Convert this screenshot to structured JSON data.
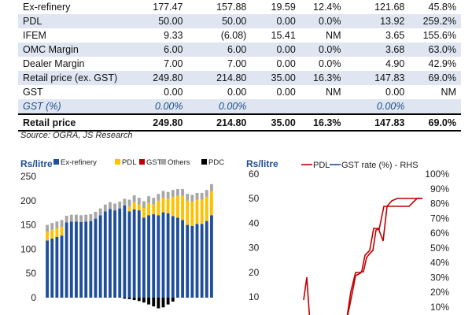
{
  "table": {
    "rows": [
      {
        "cells": [
          "Ex-refinery",
          "177.47",
          "157.88",
          "19.59",
          "12.4%",
          "121.68",
          "45.8%"
        ],
        "style": "plain"
      },
      {
        "cells": [
          "PDL",
          "50.00",
          "50.00",
          "0.00",
          "0.0%",
          "13.92",
          "259.2%"
        ],
        "style": "alt"
      },
      {
        "cells": [
          "IFEM",
          "9.33",
          "(6.08)",
          "15.41",
          "NM",
          "3.65",
          "155.6%"
        ],
        "style": "plain"
      },
      {
        "cells": [
          "OMC Margin",
          "6.00",
          "6.00",
          "0.00",
          "0.0%",
          "3.68",
          "63.0%"
        ],
        "style": "alt"
      },
      {
        "cells": [
          "Dealer Margin",
          "7.00",
          "7.00",
          "0.00",
          "0.0%",
          "4.90",
          "42.9%"
        ],
        "style": "plain"
      },
      {
        "cells": [
          "Retail price (ex. GST)",
          "249.80",
          "214.80",
          "35.00",
          "16.3%",
          "147.83",
          "69.0%"
        ],
        "style": "alt"
      },
      {
        "cells": [
          "GST",
          "0.00",
          "0.00",
          "0.00",
          "NM",
          "0.00",
          "NM"
        ],
        "style": "plain"
      },
      {
        "cells": [
          "GST (%)",
          "0.00%",
          "0.00%",
          "",
          "",
          "0.00%",
          ""
        ],
        "style": "alt ital"
      },
      {
        "cells": [
          "Retail price",
          "249.80",
          "214.80",
          "35.00",
          "16.3%",
          "147.83",
          "69.0%"
        ],
        "style": "total"
      }
    ]
  },
  "source": "Source: OGRA, JS Research",
  "chart_data": [
    {
      "type": "bar",
      "stacked": true,
      "ylabel": "Rs/litre",
      "ylim": [
        -25,
        250
      ],
      "yticks": [
        "250",
        "200",
        "150",
        "100",
        "50",
        "0"
      ],
      "legend_position": "top",
      "series": [
        {
          "name": "Ex-refinery",
          "color": "#1f4e9a",
          "values": [
            118,
            122,
            125,
            128,
            155,
            157,
            157,
            156,
            157,
            158,
            163,
            170,
            178,
            183,
            180,
            184,
            190,
            178,
            182,
            180,
            165,
            170,
            172,
            170,
            176,
            174,
            168,
            165,
            160,
            150,
            148,
            152,
            152,
            158,
            170
          ]
        },
        {
          "name": "PDL",
          "color": "#ffc000",
          "values": [
            18,
            18,
            18,
            18,
            0,
            0,
            0,
            0,
            0,
            0,
            0,
            0,
            0,
            0,
            0,
            0,
            0,
            10,
            15,
            12,
            20,
            25,
            20,
            30,
            30,
            30,
            40,
            45,
            50,
            50,
            50,
            50,
            50,
            50,
            50
          ]
        },
        {
          "name": "GST",
          "color": "#c00000",
          "values": [
            0,
            0,
            0,
            0,
            0,
            0,
            0,
            0,
            0,
            0,
            0,
            0,
            0,
            0,
            0,
            0,
            0,
            0,
            0,
            0,
            0,
            0,
            0,
            0,
            0,
            0,
            0,
            0,
            0,
            0,
            0,
            0,
            0,
            0,
            0
          ]
        },
        {
          "name": "Others",
          "color": "#a6a6a6",
          "values": [
            14,
            14,
            14,
            14,
            14,
            14,
            14,
            14,
            14,
            14,
            14,
            14,
            14,
            14,
            14,
            14,
            14,
            14,
            14,
            14,
            14,
            14,
            14,
            14,
            14,
            14,
            14,
            14,
            14,
            14,
            14,
            14,
            14,
            14,
            14
          ]
        },
        {
          "name": "PDC",
          "color": "#000000",
          "values": [
            0,
            0,
            0,
            0,
            0,
            0,
            0,
            0,
            0,
            0,
            0,
            0,
            0,
            0,
            0,
            0,
            -2,
            -3,
            -5,
            -7,
            -10,
            -14,
            -18,
            -22,
            -20,
            -14,
            -8,
            0,
            0,
            0,
            0,
            0,
            0,
            0,
            0
          ]
        }
      ]
    },
    {
      "type": "line",
      "ylabel": "Rs/litre",
      "legend_position": "top",
      "left_axis": {
        "ylim": [
          0,
          60
        ],
        "ticks": [
          "60",
          "50",
          "40",
          "30",
          "20",
          "10"
        ]
      },
      "right_axis": {
        "ylim": [
          0,
          1.0
        ],
        "ticks": [
          "100%",
          "90%",
          "80%",
          "70%",
          "60%",
          "50%",
          "40%",
          "30%",
          "20%",
          "10%"
        ]
      },
      "series": [
        {
          "name": "PDL",
          "axis": "left",
          "color": "#c00000",
          "x": [
            0,
            1,
            2,
            3,
            4,
            5,
            6,
            7,
            8,
            9,
            10,
            11,
            12,
            13,
            14,
            15,
            16,
            17,
            18,
            19,
            20,
            21,
            22,
            23,
            24,
            25,
            26,
            27,
            28,
            29,
            30,
            31,
            32,
            33,
            34
          ],
          "y": [
            null,
            null,
            null,
            null,
            null,
            null,
            null,
            null,
            null,
            null,
            null,
            null,
            null,
            null,
            null,
            null,
            null,
            null,
            null,
            null,
            null,
            null,
            null,
            null,
            null,
            null,
            null,
            null,
            null,
            null,
            null,
            null,
            null,
            null,
            null
          ]
        },
        {
          "name": "GST rate (%) - RHS",
          "axis": "right",
          "color": "#1f4e9a",
          "x": [
            0,
            1,
            2,
            3,
            4,
            5,
            6,
            7,
            8,
            9,
            10,
            11,
            12,
            13,
            14,
            15,
            16,
            17,
            18,
            19,
            20,
            21,
            22,
            23,
            24,
            25,
            26,
            27,
            28,
            29,
            30,
            31,
            32,
            33,
            34
          ],
          "y": [
            null,
            null,
            null,
            null,
            null,
            null,
            null,
            null,
            null,
            null,
            null,
            null,
            null,
            null,
            null,
            null,
            null,
            null,
            null,
            null,
            null,
            null,
            null,
            null,
            null,
            null,
            null,
            null,
            null,
            null,
            null,
            null,
            null,
            null,
            null
          ]
        }
      ],
      "pdl_visible": [
        [
          0,
          16
        ],
        [
          1,
          16
        ],
        [
          2,
          18
        ],
        [
          3,
          15
        ],
        [
          4,
          15
        ],
        [
          5,
          14
        ],
        [
          6,
          13
        ],
        [
          7,
          12
        ],
        [
          8,
          12
        ],
        [
          9,
          13
        ],
        [
          10,
          14
        ],
        [
          11,
          15
        ],
        [
          12,
          15
        ],
        [
          13,
          16
        ],
        [
          14,
          15
        ],
        [
          15,
          17
        ],
        [
          16,
          20
        ],
        [
          17,
          22
        ],
        [
          18,
          25
        ],
        [
          19,
          30
        ],
        [
          20,
          31
        ],
        [
          21,
          34
        ],
        [
          22,
          38
        ],
        [
          23,
          42
        ],
        [
          24,
          44
        ],
        [
          25,
          46
        ],
        [
          26,
          50
        ],
        [
          27,
          50
        ],
        [
          28,
          50
        ],
        [
          29,
          50
        ],
        [
          30,
          50
        ],
        [
          31,
          50
        ],
        [
          32,
          50
        ],
        [
          33,
          50
        ],
        [
          34,
          50
        ]
      ]
    }
  ]
}
